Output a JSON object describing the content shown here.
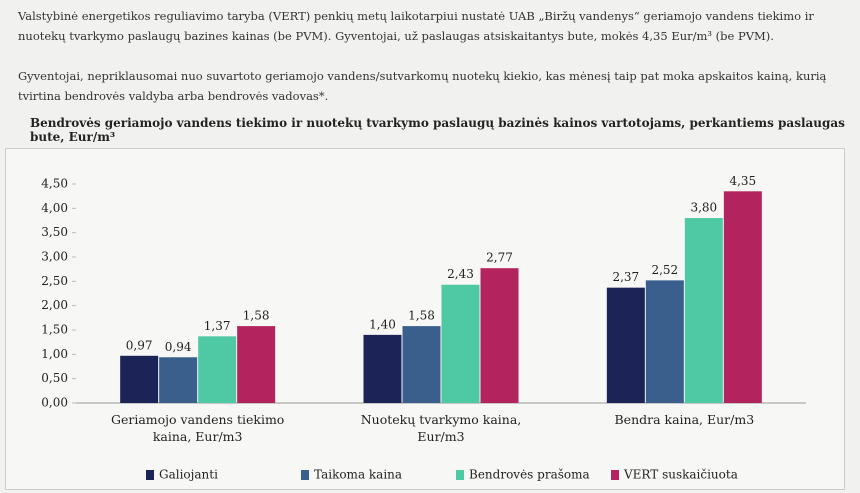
{
  "intro": [
    "Valstybinė energetikos reguliavimo taryba (VERT) penkių metų laikotarpiui nustatė UAB „Biržų vandenys“ geriamojo vandens tiekimo ir nuotekų tvarkymo paslaugų bazines kainas (be PVM). Gyventojai, už paslaugas atsiskaitantys bute, mokės 4,35 Eur/m³ (be PVM).",
    "Gyventojai, nepriklausomai nuo suvartoto geriamojo vandens/sutvarkomų nuotekų kiekio, kas mėnesį taip pat moka apskaitos kainą, kurią tvirtina bendrovės valdyba arba bendrovės vadovas*."
  ],
  "chart_data": {
    "type": "bar",
    "title": "Bendrovės geriamojo vandens tiekimo ir nuotekų tvarkymo paslaugų bazinės kainos vartotojams, perkantiems paslaugas bute, Eur/m³",
    "categories": [
      "Geriamojo vandens tiekimo kaina, Eur/m3",
      "Nuotekų tvarkymo kaina, Eur/m3",
      "Bendra kaina, Eur/m3"
    ],
    "series": [
      {
        "name": "Galiojanti",
        "color": "#1c2457",
        "values": [
          0.97,
          1.4,
          2.37
        ],
        "value_labels": [
          "0,97",
          "1,40",
          "2,37"
        ]
      },
      {
        "name": "Taikoma kaina",
        "color": "#3b5f8c",
        "values": [
          0.94,
          1.58,
          2.52
        ],
        "value_labels": [
          "0,94",
          "1,58",
          "2,52"
        ]
      },
      {
        "name": "Bendrovės prašoma",
        "color": "#4ec9a3",
        "values": [
          1.37,
          2.43,
          3.8
        ],
        "value_labels": [
          "1,37",
          "2,43",
          "3,80"
        ]
      },
      {
        "name": "VERT suskaičiuota",
        "color": "#b3245e",
        "values": [
          1.58,
          2.77,
          4.35
        ],
        "value_labels": [
          "1,58",
          "2,77",
          "4,35"
        ]
      }
    ],
    "ylim": [
      0,
      4.5
    ],
    "yticks": [
      {
        "value": 0,
        "label": "0,00"
      },
      {
        "value": 0.5,
        "label": "0,50"
      },
      {
        "value": 1,
        "label": "1,00"
      },
      {
        "value": 1.5,
        "label": "1,50"
      },
      {
        "value": 2,
        "label": "2,00"
      },
      {
        "value": 2.5,
        "label": "2,50"
      },
      {
        "value": 3,
        "label": "3,00"
      },
      {
        "value": 3.5,
        "label": "3,50"
      },
      {
        "value": 4,
        "label": "4,00"
      },
      {
        "value": 4.5,
        "label": "4,50"
      }
    ],
    "grid": false
  }
}
